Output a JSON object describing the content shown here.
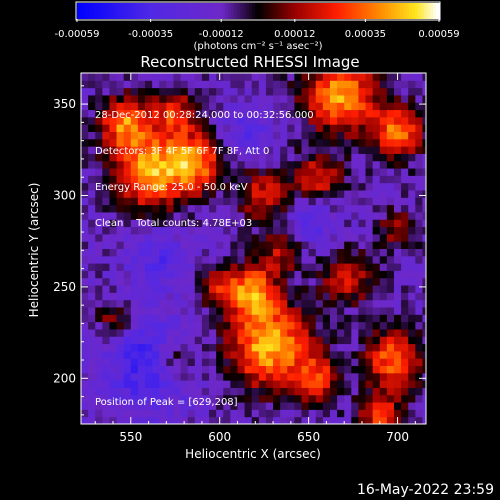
{
  "chart_data": {
    "type": "heatmap",
    "title": "Reconstructed RHESSI Image",
    "xlabel": "Heliocentric X (arcsec)",
    "ylabel": "Heliocentric Y (arcsec)",
    "xlim": [
      522,
      716
    ],
    "ylim": [
      175,
      367
    ],
    "xticks": [
      550,
      600,
      650,
      700
    ],
    "yticks": [
      200,
      250,
      300,
      350
    ],
    "colorbar": {
      "label": "(photons cm⁻² s⁻¹ asec⁻²)",
      "min": -0.00059,
      "max": 0.00059,
      "ticks": [
        "-0.00059",
        "-0.00035",
        "-0.00012",
        "0.00012",
        "0.00035",
        "0.00059"
      ]
    },
    "annotations": [
      "28-Dec-2012 00:28:24.000 to 00:32:56.000",
      "Detectors: 3F 4F 5F 6F 7F 8F, Att 0",
      "Energy Range: 25.0 - 50.0 keV",
      "Clean    Total counts: 4.78E+03"
    ],
    "peak_label": "Position of Peak = [629,208]",
    "peak": [
      629,
      208
    ],
    "footer": "16-May-2022 23:59",
    "grid": false
  }
}
